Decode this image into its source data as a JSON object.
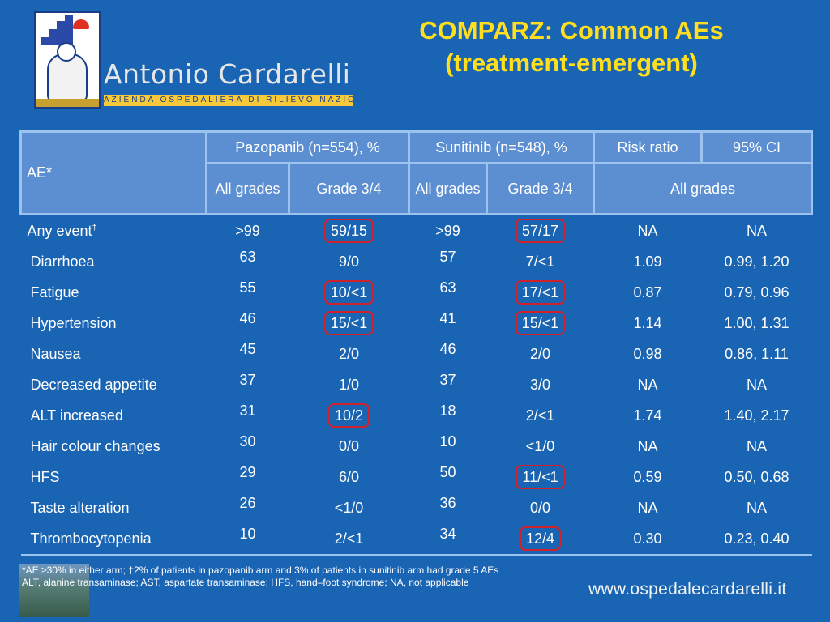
{
  "logo": {
    "name": "Antonio Cardarelli",
    "subtitle": "AZIENDA OSPEDALIERA DI RILIEVO NAZIONALE"
  },
  "title": {
    "line1": "COMPARZ: Common AEs",
    "line2": "(treatment-emergent)"
  },
  "table": {
    "header": {
      "ae_label": "AE*",
      "pazopanib": "Pazopanib (n=554), %",
      "sunitinib": "Sunitinib (n=548), %",
      "risk_ratio": "Risk ratio",
      "ci": "95% CI",
      "all_grades_1": "All grades",
      "grade34_1": "Grade 3/4",
      "all_grades_2": "All grades",
      "grade34_2": "Grade 3/4",
      "all_grades_span": "All grades"
    },
    "rows": [
      {
        "name": "Any event",
        "dagger": "†",
        "paz_all": ">99",
        "paz_g34": "59/15",
        "sun_all": ">99",
        "sun_g34": "57/17",
        "rr": "NA",
        "ci": "NA"
      },
      {
        "name": "Diarrhoea",
        "paz_all": "63",
        "paz_g34": "9/0",
        "sun_all": "57",
        "sun_g34": "7/<1",
        "rr": "1.09",
        "ci": "0.99, 1.20"
      },
      {
        "name": "Fatigue",
        "paz_all": "55",
        "paz_g34": "10/<1",
        "sun_all": "63",
        "sun_g34": "17/<1",
        "rr": "0.87",
        "ci": "0.79, 0.96"
      },
      {
        "name": "Hypertension",
        "paz_all": "46",
        "paz_g34": "15/<1",
        "sun_all": "41",
        "sun_g34": "15/<1",
        "rr": "1.14",
        "ci": "1.00, 1.31"
      },
      {
        "name": "Nausea",
        "paz_all": "45",
        "paz_g34": "2/0",
        "sun_all": "46",
        "sun_g34": "2/0",
        "rr": "0.98",
        "ci": "0.86, 1.11"
      },
      {
        "name": "Decreased appetite",
        "paz_all": "37",
        "paz_g34": "1/0",
        "sun_all": "37",
        "sun_g34": "3/0",
        "rr": "NA",
        "ci": "NA"
      },
      {
        "name": "ALT increased",
        "paz_all": "31",
        "paz_g34": "10/2",
        "sun_all": "18",
        "sun_g34": "2/<1",
        "rr": "1.74",
        "ci": "1.40, 2.17"
      },
      {
        "name": "Hair colour changes",
        "paz_all": "30",
        "paz_g34": "0/0",
        "sun_all": "10",
        "sun_g34": "<1/0",
        "rr": "NA",
        "ci": "NA"
      },
      {
        "name": "HFS",
        "paz_all": "29",
        "paz_g34": "6/0",
        "sun_all": "50",
        "sun_g34": "11/<1",
        "rr": "0.59",
        "ci": "0.50, 0.68"
      },
      {
        "name": "Taste alteration",
        "paz_all": "26",
        "paz_g34": "<1/0",
        "sun_all": "36",
        "sun_g34": "0/0",
        "rr": "NA",
        "ci": "NA"
      },
      {
        "name": "Thrombocytopenia",
        "paz_all": "10",
        "paz_g34": "2/<1",
        "sun_all": "34",
        "sun_g34": "12/4",
        "rr": "0.30",
        "ci": "0.23, 0.40"
      }
    ]
  },
  "footnotes": {
    "line1": "*AE ≥30% in either arm; †2% of patients in pazopanib arm and 3% of patients in sunitinib arm had grade 5 AEs",
    "line2": "ALT, alanine transaminase; AST, aspartate transaminase; HFS, hand–foot syndrome; NA, not applicable"
  },
  "website": "www.ospedalecardarelli.it",
  "colors": {
    "background": "#1a64b4",
    "header_fill": "#5c8fd2",
    "grid_line": "#9cc3ef",
    "title": "#ffde1f",
    "highlight_box": "#d0202a"
  }
}
